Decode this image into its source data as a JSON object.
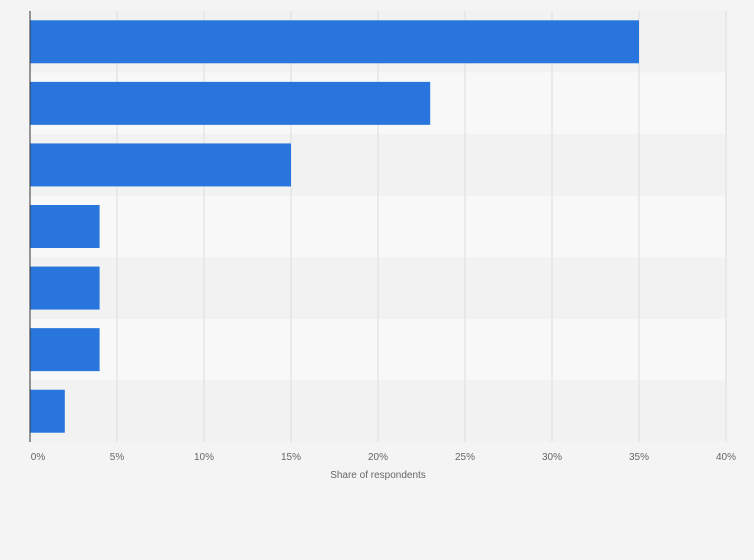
{
  "chart_data": {
    "type": "bar",
    "orientation": "horizontal",
    "title": "",
    "xlabel": "Share of respondents",
    "ylabel": "",
    "xlim": [
      0,
      40
    ],
    "x_ticks": [
      0,
      5,
      10,
      15,
      20,
      25,
      30,
      35,
      40
    ],
    "x_tick_labels": [
      "0%",
      "5%",
      "10%",
      "15%",
      "20%",
      "25%",
      "30%",
      "35%",
      "40%"
    ],
    "categories": [
      "",
      "",
      "",
      "",
      "",
      "",
      ""
    ],
    "values": [
      35,
      23,
      15,
      4,
      4,
      4,
      2
    ],
    "unit": "%",
    "grid": true,
    "legend": "none",
    "colors": {
      "bar": "#2876dd",
      "row_light": "#f8f8f8",
      "row_dark": "#f2f2f2",
      "grid": "#dddddd",
      "axis": "#333333",
      "text": "#666666"
    }
  }
}
